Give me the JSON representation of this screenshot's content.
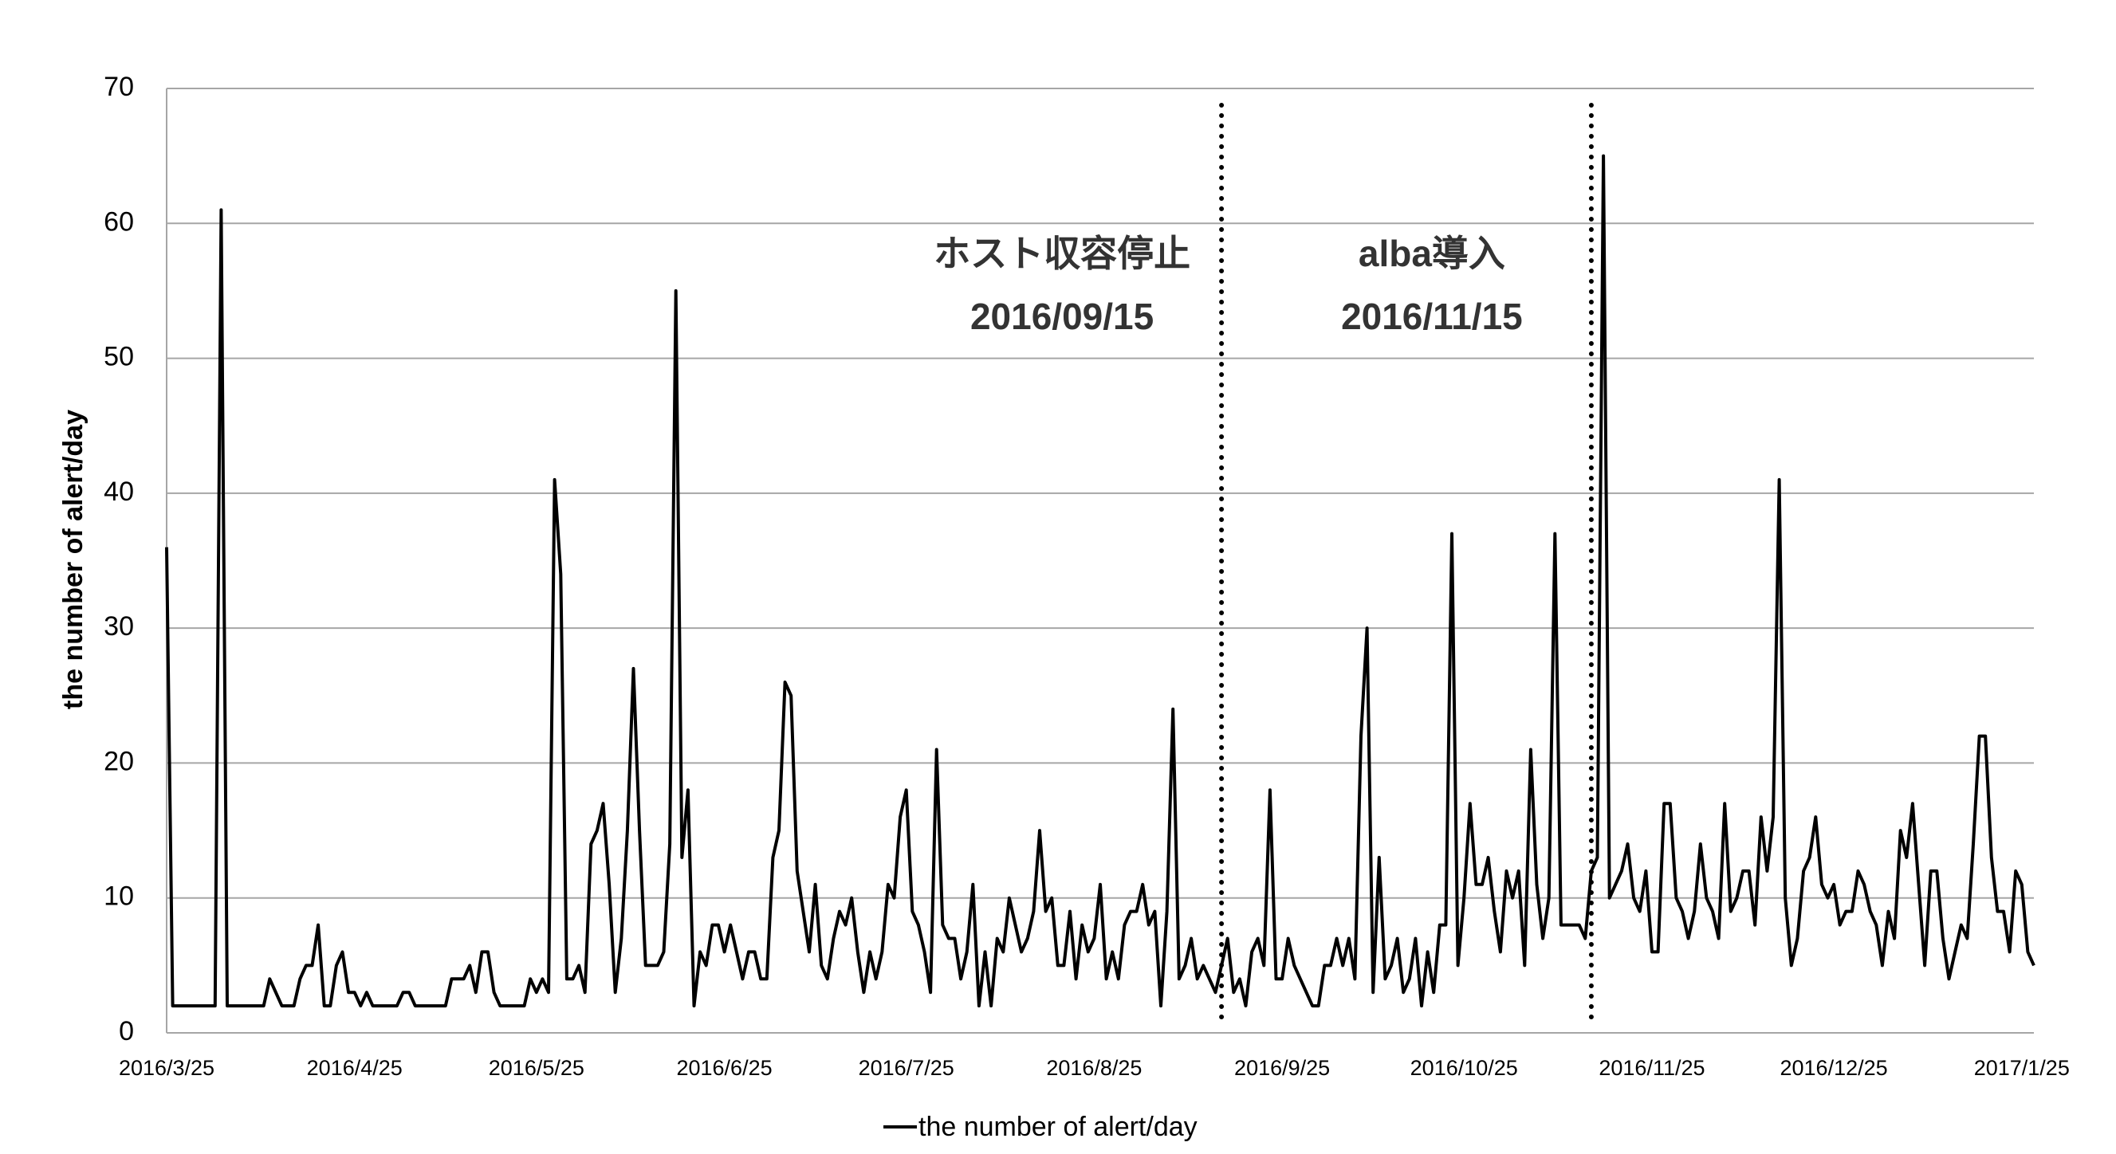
{
  "chart_data": {
    "type": "line",
    "ylabel": "the number of alert/day",
    "categories": [
      "2016/3/25",
      null,
      null,
      null,
      null,
      null,
      null,
      null,
      null,
      null,
      null,
      null,
      null,
      null,
      null,
      null,
      null,
      null,
      null,
      null,
      null,
      null,
      null,
      null,
      null,
      null,
      null,
      null,
      null,
      null,
      null,
      "2016/4/25",
      null,
      null,
      null,
      null,
      null,
      null,
      null,
      null,
      null,
      null,
      null,
      null,
      null,
      null,
      null,
      null,
      null,
      null,
      null,
      null,
      null,
      null,
      null,
      null,
      null,
      null,
      null,
      null,
      null,
      "2016/5/25",
      null,
      null,
      null,
      null,
      null,
      null,
      null,
      null,
      null,
      null,
      null,
      null,
      null,
      null,
      null,
      null,
      null,
      null,
      null,
      null,
      null,
      null,
      null,
      null,
      null,
      null,
      null,
      null,
      null,
      null,
      "2016/6/25",
      null,
      null,
      null,
      null,
      null,
      null,
      null,
      null,
      null,
      null,
      null,
      null,
      null,
      null,
      null,
      null,
      null,
      null,
      null,
      null,
      null,
      null,
      null,
      null,
      null,
      null,
      null,
      null,
      null,
      "2016/7/25",
      null,
      null,
      null,
      null,
      null,
      null,
      null,
      null,
      null,
      null,
      null,
      null,
      null,
      null,
      null,
      null,
      null,
      null,
      null,
      null,
      null,
      null,
      null,
      null,
      null,
      null,
      null,
      null,
      null,
      null,
      "2016/8/25",
      null,
      null,
      null,
      null,
      null,
      null,
      null,
      null,
      null,
      null,
      null,
      null,
      null,
      null,
      null,
      null,
      null,
      null,
      null,
      null,
      null,
      null,
      null,
      null,
      null,
      null,
      null,
      null,
      null,
      null,
      "2016/9/25",
      null,
      null,
      null,
      null,
      null,
      null,
      null,
      null,
      null,
      null,
      null,
      null,
      null,
      null,
      null,
      null,
      null,
      null,
      null,
      null,
      null,
      null,
      null,
      null,
      null,
      null,
      null,
      null,
      null,
      "2016/10/25",
      null,
      null,
      null,
      null,
      null,
      null,
      null,
      null,
      null,
      null,
      null,
      null,
      null,
      null,
      null,
      null,
      null,
      null,
      null,
      null,
      null,
      null,
      null,
      null,
      null,
      null,
      null,
      null,
      null,
      null,
      "2016/11/25",
      null,
      null,
      null,
      null,
      null,
      null,
      null,
      null,
      null,
      null,
      null,
      null,
      null,
      null,
      null,
      null,
      null,
      null,
      null,
      null,
      null,
      null,
      null,
      null,
      null,
      null,
      null,
      null,
      null,
      "2016/12/25",
      null,
      null,
      null,
      null,
      null,
      null,
      null,
      null,
      null,
      null,
      null,
      null,
      null,
      null,
      null,
      null,
      null,
      null,
      null,
      null,
      null,
      null,
      null,
      null,
      null,
      null,
      null,
      null,
      null,
      null,
      "2017/1/25",
      null,
      null
    ],
    "series": [
      {
        "name": "the number of alert/day",
        "color": "#000000",
        "values": [
          36,
          2,
          2,
          2,
          2,
          2,
          2,
          2,
          2,
          61,
          2,
          2,
          2,
          2,
          2,
          2,
          2,
          4,
          3,
          2,
          2,
          2,
          4,
          5,
          5,
          8,
          2,
          2,
          5,
          6,
          3,
          3,
          2,
          3,
          2,
          2,
          2,
          2,
          2,
          3,
          3,
          2,
          2,
          2,
          2,
          2,
          2,
          4,
          4,
          4,
          5,
          3,
          6,
          6,
          3,
          2,
          2,
          2,
          2,
          2,
          4,
          3,
          4,
          3,
          41,
          34,
          4,
          4,
          5,
          3,
          14,
          15,
          17,
          11,
          3,
          7,
          15,
          27,
          15,
          5,
          5,
          5,
          6,
          14,
          55,
          13,
          18,
          2,
          6,
          5,
          8,
          8,
          6,
          8,
          6,
          4,
          6,
          6,
          4,
          4,
          13,
          15,
          26,
          25,
          12,
          9,
          6,
          11,
          5,
          4,
          7,
          9,
          8,
          10,
          6,
          3,
          6,
          4,
          6,
          11,
          10,
          16,
          18,
          9,
          8,
          6,
          3,
          21,
          8,
          7,
          7,
          4,
          6,
          11,
          2,
          6,
          2,
          7,
          6,
          10,
          8,
          6,
          7,
          9,
          15,
          9,
          10,
          5,
          5,
          9,
          4,
          8,
          6,
          7,
          11,
          4,
          6,
          4,
          8,
          9,
          9,
          11,
          8,
          9,
          2,
          9,
          24,
          4,
          5,
          7,
          4,
          5,
          4,
          3,
          5,
          7,
          3,
          4,
          2,
          6,
          7,
          5,
          18,
          4,
          4,
          7,
          5,
          4,
          3,
          2,
          2,
          5,
          5,
          7,
          5,
          7,
          4,
          22,
          30,
          3,
          13,
          4,
          5,
          7,
          3,
          4,
          7,
          2,
          6,
          3,
          8,
          8,
          37,
          5,
          10,
          17,
          11,
          11,
          13,
          9,
          6,
          12,
          10,
          12,
          5,
          21,
          11,
          7,
          10,
          37,
          8,
          8,
          8,
          8,
          7,
          12,
          13,
          65,
          10,
          11,
          12,
          14,
          10,
          9,
          12,
          6,
          6,
          17,
          17,
          10,
          9,
          7,
          9,
          14,
          10,
          9,
          7,
          17,
          9,
          10,
          12,
          12,
          8,
          16,
          12,
          16,
          41,
          10,
          5,
          7,
          12,
          13,
          16,
          11,
          10,
          11,
          8,
          9,
          9,
          12,
          11,
          9,
          8,
          5,
          9,
          7,
          15,
          13,
          17,
          11,
          5,
          12,
          12,
          7,
          4,
          6,
          8,
          7,
          14,
          22,
          22,
          13,
          9,
          9,
          6,
          12,
          11,
          6,
          5
        ]
      }
    ],
    "ylim": [
      0,
      70
    ],
    "yticks": [
      0,
      10,
      20,
      30,
      40,
      50,
      60,
      70
    ],
    "grid": true,
    "annotations": [
      {
        "date": "2016/09/15",
        "text": "ホスト収容停止"
      },
      {
        "date": "2016/11/15",
        "text": "alba導入"
      }
    ],
    "legend": "bottom"
  }
}
